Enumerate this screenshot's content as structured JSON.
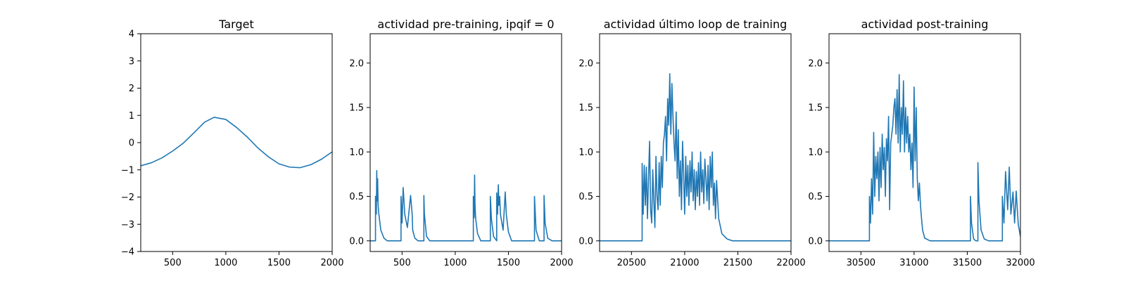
{
  "chart_data": [
    {
      "type": "line",
      "title": "Target",
      "xlim": [
        200,
        2000
      ],
      "ylim": [
        -4,
        4
      ],
      "xticks": [
        500,
        1000,
        1500,
        2000
      ],
      "yticks": [
        -4,
        -3,
        -2,
        -1,
        0,
        1,
        2,
        3,
        4
      ],
      "xtick_labels": [
        "500",
        "1000",
        "1500",
        "2000"
      ],
      "ytick_labels": [
        "−4",
        "−3",
        "−2",
        "−1",
        "0",
        "1",
        "2",
        "3",
        "4"
      ],
      "series": [
        {
          "color": "#1f77b4",
          "x": [
            200,
            300,
            400,
            500,
            600,
            700,
            800,
            890,
            1000,
            1100,
            1200,
            1300,
            1400,
            1500,
            1600,
            1700,
            1800,
            1900,
            2000
          ],
          "y": [
            -0.85,
            -0.74,
            -0.56,
            -0.31,
            -0.02,
            0.36,
            0.75,
            0.93,
            0.85,
            0.56,
            0.21,
            -0.19,
            -0.52,
            -0.78,
            -0.9,
            -0.92,
            -0.81,
            -0.61,
            -0.34
          ]
        }
      ]
    },
    {
      "type": "line",
      "title": "actividad pre-training, ipqif = 0",
      "xlim": [
        200,
        2000
      ],
      "ylim": [
        -0.12,
        2.33
      ],
      "xticks": [
        500,
        1000,
        1500,
        2000
      ],
      "yticks": [
        0.0,
        0.5,
        1.0,
        1.5,
        2.0
      ],
      "xtick_labels": [
        "500",
        "1000",
        "1500",
        "2000"
      ],
      "ytick_labels": [
        "0.0",
        "0.5",
        "1.0",
        "1.5",
        "2.0"
      ],
      "series": [
        {
          "color": "#1f77b4",
          "x": [
            200,
            250,
            250,
            258,
            262,
            266,
            270,
            275,
            280,
            300,
            330,
            360,
            490,
            490,
            500,
            510,
            518,
            525,
            550,
            580,
            595,
            600,
            620,
            650,
            705,
            705,
            710,
            730,
            760,
            1170,
            1170,
            1178,
            1182,
            1186,
            1192,
            1210,
            1240,
            1330,
            1330,
            1340,
            1360,
            1390,
            1390,
            1398,
            1405,
            1410,
            1418,
            1425,
            1450,
            1470,
            1480,
            1500,
            1530,
            1745,
            1745,
            1760,
            1790,
            1835,
            1835,
            1845,
            1870,
            1910,
            2000
          ],
          "y": [
            0,
            0,
            0.5,
            0.3,
            0.79,
            0.45,
            0.7,
            0.4,
            0.32,
            0.12,
            0.03,
            0.0,
            0.0,
            0.5,
            0.2,
            0.6,
            0.45,
            0.3,
            0.15,
            0.51,
            0.3,
            0.12,
            0.03,
            0.0,
            0.0,
            0.51,
            0.3,
            0.05,
            0.0,
            0.0,
            0.5,
            0.26,
            0.74,
            0.4,
            0.25,
            0.08,
            0.0,
            0.0,
            0.5,
            0.25,
            0.05,
            0.0,
            0.54,
            0.3,
            0.63,
            0.4,
            0.5,
            0.3,
            0.12,
            0.55,
            0.3,
            0.1,
            0.0,
            0.0,
            0.5,
            0.12,
            0.0,
            0.0,
            0.51,
            0.2,
            0.03,
            0.0,
            0.0
          ]
        }
      ]
    },
    {
      "type": "line",
      "title": "actividad último loop de training",
      "xlim": [
        20200,
        22000
      ],
      "ylim": [
        -0.12,
        2.33
      ],
      "xticks": [
        20500,
        21000,
        21500,
        22000
      ],
      "yticks": [
        0.0,
        0.5,
        1.0,
        1.5,
        2.0
      ],
      "xtick_labels": [
        "20500",
        "21000",
        "21500",
        "22000"
      ],
      "ytick_labels": [
        "0.0",
        "0.5",
        "1.0",
        "1.5",
        "2.0"
      ],
      "series": [
        {
          "color": "#1f77b4",
          "x": [
            20200,
            20600,
            20600,
            20610,
            20620,
            20630,
            20640,
            20650,
            20660,
            20670,
            20680,
            20690,
            20700,
            20710,
            20720,
            20730,
            20740,
            20750,
            20760,
            20770,
            20780,
            20790,
            20800,
            20810,
            20820,
            20830,
            20840,
            20850,
            20860,
            20870,
            20880,
            20890,
            20900,
            20910,
            20920,
            20930,
            20940,
            20950,
            20960,
            20970,
            20980,
            20990,
            21000,
            21010,
            21020,
            21030,
            21040,
            21050,
            21060,
            21070,
            21080,
            21090,
            21100,
            21110,
            21120,
            21130,
            21140,
            21150,
            21160,
            21170,
            21180,
            21190,
            21200,
            21210,
            21220,
            21230,
            21240,
            21250,
            21260,
            21270,
            21280,
            21290,
            21300,
            21320,
            21350,
            21400,
            21450,
            21500,
            22000
          ],
          "y": [
            0,
            0,
            0.87,
            0.3,
            0.85,
            0.4,
            0.83,
            0.25,
            0.7,
            1.12,
            0.35,
            0.2,
            0.8,
            0.45,
            0.15,
            0.95,
            0.5,
            0.35,
            0.88,
            0.4,
            0.95,
            0.6,
            1.1,
            1.2,
            1.4,
            0.9,
            1.6,
            1.3,
            1.88,
            1.2,
            1.77,
            1.4,
            1.1,
            0.9,
            1.45,
            0.7,
            1.25,
            0.5,
            0.9,
            0.35,
            1.12,
            0.75,
            0.3,
            0.95,
            0.5,
            0.85,
            0.4,
            0.9,
            0.55,
            1.0,
            0.45,
            0.8,
            0.35,
            0.78,
            0.5,
            0.88,
            0.4,
            1.0,
            0.55,
            0.8,
            0.42,
            0.92,
            0.7,
            0.45,
            0.85,
            0.35,
            0.95,
            0.6,
            1.0,
            0.4,
            0.65,
            0.25,
            0.68,
            0.25,
            0.08,
            0.02,
            0.0,
            0.0,
            0.0
          ]
        }
      ]
    },
    {
      "type": "line",
      "title": "actividad post-training",
      "xlim": [
        30200,
        32000
      ],
      "ylim": [
        -0.12,
        2.33
      ],
      "xticks": [
        30500,
        31000,
        31500,
        32000
      ],
      "yticks": [
        0.0,
        0.5,
        1.0,
        1.5,
        2.0
      ],
      "xtick_labels": [
        "30500",
        "31000",
        "31500",
        "32000"
      ],
      "ytick_labels": [
        "0.0",
        "0.5",
        "1.0",
        "1.5",
        "2.0"
      ],
      "series": [
        {
          "color": "#1f77b4",
          "x": [
            30200,
            30580,
            30580,
            30590,
            30600,
            30610,
            30620,
            30630,
            30640,
            30650,
            30660,
            30670,
            30680,
            30690,
            30700,
            30710,
            30720,
            30730,
            30740,
            30750,
            30760,
            30770,
            30780,
            30790,
            30800,
            30810,
            30820,
            30830,
            30840,
            30850,
            30860,
            30870,
            30880,
            30890,
            30900,
            30910,
            30920,
            30930,
            30940,
            30950,
            30960,
            30970,
            30980,
            30990,
            31000,
            31010,
            31020,
            31030,
            31040,
            31050,
            31060,
            31070,
            31080,
            31100,
            31150,
            31200,
            31530,
            31530,
            31540,
            31560,
            31580,
            31600,
            31600,
            31610,
            31630,
            31660,
            31700,
            31830,
            31830,
            31845,
            31860,
            31880,
            31895,
            31910,
            31930,
            31945,
            31960,
            31980,
            32000
          ],
          "y": [
            0,
            0,
            0.5,
            0.2,
            0.7,
            0.3,
            1.22,
            0.5,
            0.95,
            0.7,
            1.0,
            0.45,
            1.05,
            0.6,
            1.2,
            0.8,
            1.05,
            0.5,
            1.15,
            0.9,
            1.4,
            0.35,
            1.1,
            1.2,
            1.3,
            1.5,
            1.6,
            1.2,
            1.7,
            1.1,
            1.87,
            1.0,
            1.5,
            1.2,
            1.8,
            1.0,
            1.5,
            1.1,
            1.4,
            1.0,
            1.2,
            0.8,
            1.1,
            0.6,
            1.73,
            0.9,
            1.5,
            0.7,
            0.45,
            0.65,
            0.4,
            0.25,
            0.12,
            0.03,
            0.0,
            0.0,
            0.0,
            0.5,
            0.2,
            0.02,
            0.0,
            0.0,
            0.88,
            0.45,
            0.12,
            0.02,
            0.0,
            0.0,
            0.5,
            0.2,
            0.78,
            0.35,
            0.83,
            0.3,
            0.55,
            0.2,
            0.56,
            0.18,
            0.05
          ]
        }
      ]
    }
  ]
}
